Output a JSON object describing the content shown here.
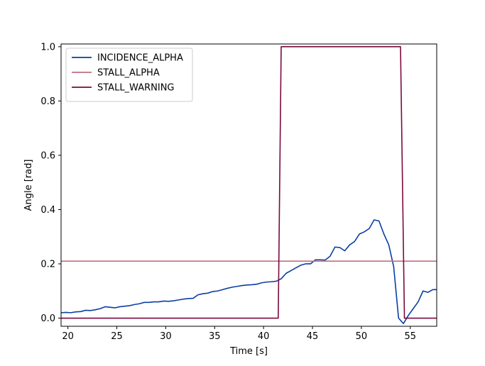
{
  "chart_data": {
    "type": "line",
    "title": "",
    "xlabel": "Time [s]",
    "ylabel": "Angle [rad]",
    "xlim": [
      19.3,
      57.7
    ],
    "ylim": [
      -0.03,
      1.01
    ],
    "x_ticks": [
      20,
      25,
      30,
      35,
      40,
      45,
      50,
      55
    ],
    "y_ticks": [
      0.0,
      0.2,
      0.4,
      0.6,
      0.8,
      1.0
    ],
    "x_tick_labels": [
      "20",
      "25",
      "30",
      "35",
      "40",
      "45",
      "50",
      "55"
    ],
    "y_tick_labels": [
      "0.0",
      "0.2",
      "0.4",
      "0.6",
      "0.8",
      "1.0"
    ],
    "grid": false,
    "legend_position": "top-left",
    "series": [
      {
        "name": "INCIDENCE_ALPHA",
        "color": "#0a3fa3",
        "x": [
          19.3,
          19.8,
          20.3,
          20.8,
          21.3,
          21.8,
          22.3,
          22.8,
          23.3,
          23.8,
          24.3,
          24.8,
          25.3,
          25.8,
          26.3,
          26.8,
          27.3,
          27.8,
          28.3,
          28.8,
          29.3,
          29.8,
          30.3,
          30.8,
          31.3,
          31.8,
          32.3,
          32.8,
          33.3,
          33.8,
          34.3,
          34.8,
          35.3,
          35.8,
          36.3,
          36.8,
          37.3,
          37.8,
          38.3,
          38.8,
          39.3,
          39.8,
          40.3,
          40.8,
          41.3,
          41.8,
          42.3,
          42.8,
          43.3,
          43.8,
          44.3,
          44.8,
          45.3,
          45.8,
          46.3,
          46.8,
          47.3,
          47.8,
          48.3,
          48.8,
          49.3,
          49.8,
          50.3,
          50.8,
          51.3,
          51.8,
          52.3,
          52.8,
          53.3,
          53.8,
          54.3,
          54.8,
          55.3,
          55.8,
          56.3,
          56.8,
          57.3,
          57.7
        ],
        "y": [
          0.02,
          0.021,
          0.02,
          0.023,
          0.024,
          0.029,
          0.028,
          0.031,
          0.035,
          0.042,
          0.04,
          0.038,
          0.042,
          0.044,
          0.046,
          0.05,
          0.053,
          0.058,
          0.058,
          0.06,
          0.06,
          0.063,
          0.062,
          0.064,
          0.067,
          0.07,
          0.072,
          0.073,
          0.086,
          0.09,
          0.092,
          0.098,
          0.1,
          0.105,
          0.11,
          0.114,
          0.117,
          0.12,
          0.122,
          0.123,
          0.125,
          0.13,
          0.133,
          0.134,
          0.136,
          0.145,
          0.165,
          0.175,
          0.185,
          0.195,
          0.2,
          0.2,
          0.215,
          0.215,
          0.214,
          0.228,
          0.262,
          0.26,
          0.248,
          0.27,
          0.282,
          0.31,
          0.318,
          0.33,
          0.362,
          0.358,
          0.31,
          0.27,
          0.19,
          0.0,
          -0.02,
          0.01,
          0.035,
          0.06,
          0.1,
          0.095,
          0.105,
          0.105
        ]
      },
      {
        "name": "STALL_ALPHA",
        "color": "#c0707f",
        "x": [
          19.3,
          57.7
        ],
        "y": [
          0.21,
          0.21
        ]
      },
      {
        "name": "STALL_WARNING",
        "color": "#7a0a3f",
        "x": [
          19.3,
          41.5,
          41.8,
          54.0,
          54.4,
          57.7
        ],
        "y": [
          0.0,
          0.0,
          1.0,
          1.0,
          0.0,
          0.0
        ]
      }
    ]
  }
}
